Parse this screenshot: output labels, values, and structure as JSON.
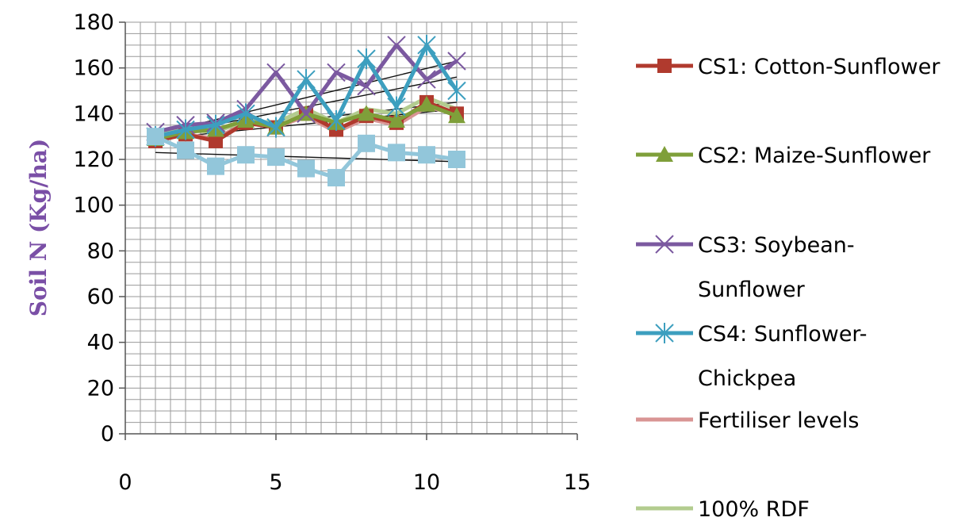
{
  "chart_data": {
    "type": "line",
    "title": "",
    "xlabel": "",
    "ylabel": "Soil N (Kg/ha)",
    "xlim": [
      0,
      15
    ],
    "ylim": [
      0,
      180
    ],
    "xticks": [
      0,
      5,
      10,
      15
    ],
    "yticks": [
      0,
      20,
      40,
      60,
      80,
      100,
      120,
      140,
      160,
      180
    ],
    "grid": true,
    "legend_position": "right",
    "x": [
      1,
      2,
      3,
      4,
      5,
      6,
      7,
      8,
      9,
      10,
      11
    ],
    "series": [
      {
        "name": "CS1: Cotton-Sunflower",
        "color": "#b03a2e",
        "marker": "square",
        "values": [
          128,
          131,
          128,
          136,
          134,
          140,
          133,
          139,
          136,
          145,
          140
        ]
      },
      {
        "name": "CS2: Maize-Sunflower",
        "color": "#7f9f3a",
        "marker": "triangle",
        "values": [
          129,
          132,
          133,
          137,
          134,
          140,
          136,
          140,
          137,
          144,
          139
        ]
      },
      {
        "name": "CS3: Soybean-Sunflower",
        "color": "#7b59a0",
        "marker": "x",
        "values": [
          132,
          135,
          136,
          142,
          158,
          140,
          158,
          152,
          170,
          155,
          163
        ]
      },
      {
        "name": "CS4: Sunflower-Chickpea",
        "color": "#3d9fbf",
        "marker": "star",
        "values": [
          130,
          133,
          135,
          140,
          134,
          155,
          137,
          164,
          143,
          170,
          150
        ]
      },
      {
        "name": "Fertiliser levels",
        "color": "#d99594",
        "marker": "none",
        "values": [
          128,
          131,
          129,
          136,
          134,
          139,
          132,
          138,
          135,
          143,
          140
        ]
      },
      {
        "name": "100% RDF",
        "color": "#b3cc8f",
        "marker": "none",
        "values": [
          131,
          133,
          132,
          137,
          136,
          142,
          136,
          142,
          140,
          147,
          142
        ]
      },
      {
        "name": "",
        "color": "#92c6da",
        "marker": "square-large",
        "values": [
          130,
          124,
          117,
          122,
          121,
          116,
          112,
          127,
          123,
          122,
          120
        ]
      }
    ],
    "trendlines": [
      {
        "values_at_x1_x11": [
          131,
          163
        ]
      },
      {
        "values_at_x1_x11": [
          130,
          156
        ]
      },
      {
        "values_at_x1_x11": [
          130,
          145
        ]
      },
      {
        "values_at_x1_x11": [
          129,
          142
        ]
      },
      {
        "values_at_x1_x11": [
          123,
          119
        ]
      }
    ]
  }
}
